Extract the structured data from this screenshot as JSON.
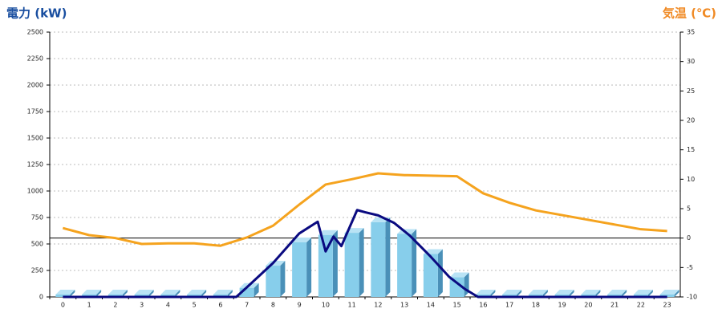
{
  "chart_data": {
    "type": "combo",
    "y_title": "電力 (kW)",
    "y2_title": "気温 (℃)",
    "categories": [
      "0",
      "1",
      "2",
      "3",
      "4",
      "5",
      "6",
      "7",
      "8",
      "9",
      "10",
      "11",
      "12",
      "13",
      "14",
      "15",
      "16",
      "17",
      "18",
      "19",
      "20",
      "21",
      "22",
      "23"
    ],
    "ylim": [
      0,
      2500
    ],
    "yticks": [
      0,
      250,
      500,
      750,
      1000,
      1250,
      1500,
      1750,
      2000,
      2250,
      2500
    ],
    "y2lim": [
      -10,
      35
    ],
    "y2ticks": [
      -10,
      -5,
      0,
      5,
      10,
      15,
      20,
      25,
      30,
      35
    ],
    "grid": true,
    "series": [
      {
        "type": "bar",
        "color": "#87ceeb",
        "values": [
          0,
          0,
          0,
          0,
          0,
          0,
          0,
          70,
          280,
          500,
          570,
          590,
          690,
          580,
          390,
          170,
          0,
          0,
          0,
          0,
          0,
          0,
          0,
          0
        ]
      },
      {
        "type": "line",
        "color": "#0a0a80",
        "x": [
          0,
          6.6,
          7,
          8,
          9,
          9.7,
          10,
          10.3,
          10.6,
          11.2,
          11.5,
          12,
          12.6,
          13.2,
          14,
          14.7,
          15.3,
          15.8,
          23
        ],
        "values": [
          0,
          0,
          90,
          320,
          600,
          710,
          430,
          570,
          480,
          820,
          800,
          770,
          700,
          580,
          380,
          190,
          75,
          0,
          0
        ]
      },
      {
        "type": "line",
        "color": "#f5a31e",
        "axis": "y2",
        "values": [
          1.7,
          0.5,
          0,
          -1,
          -0.9,
          -0.9,
          -1.3,
          0.1,
          2.1,
          5.7,
          9.1,
          10,
          11,
          10.7,
          10.6,
          10.5,
          7.6,
          6,
          4.7,
          3.9,
          3.1,
          2.3,
          1.5,
          1.2
        ]
      }
    ]
  }
}
